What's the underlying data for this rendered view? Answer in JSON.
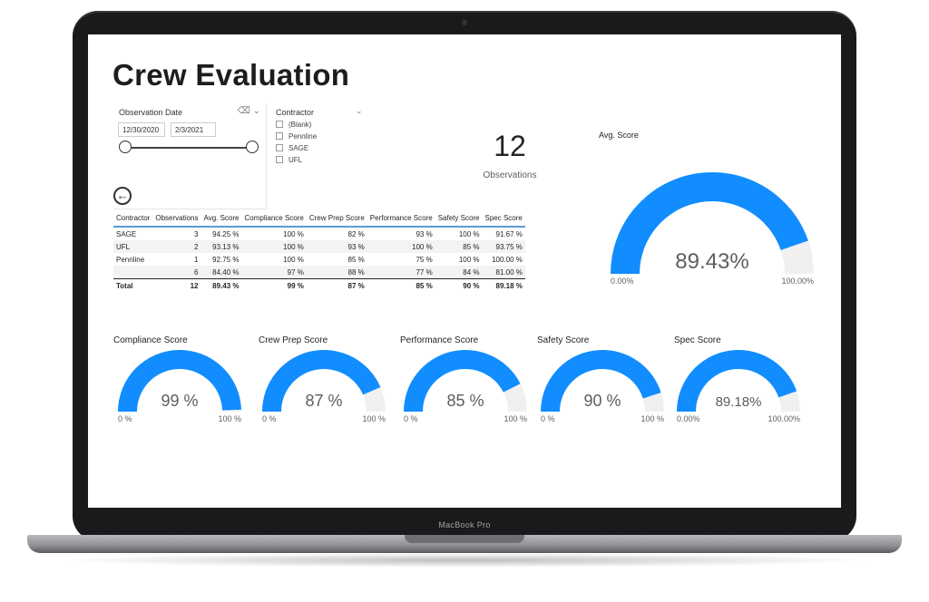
{
  "device": {
    "brand_label": "MacBook Pro"
  },
  "report": {
    "title": "Crew Evaluation",
    "date_slicer": {
      "title": "Observation Date",
      "start": "12/30/2020",
      "end": "2/3/2021"
    },
    "contractor_slicer": {
      "title": "Contractor",
      "options": [
        "(Blank)",
        "Pennline",
        "SAGE",
        "UFL"
      ]
    },
    "kpi": {
      "value": "12",
      "label": "Observations"
    },
    "table": {
      "columns": [
        "Contractor",
        "Observations",
        "Avg. Score",
        "Compliance Score",
        "Crew Prep Score",
        "Performance Score",
        "Safety Score",
        "Spec Score"
      ],
      "rows": [
        [
          "SAGE",
          "3",
          "94.25 %",
          "100 %",
          "82 %",
          "93 %",
          "100 %",
          "91.67 %"
        ],
        [
          "UFL",
          "2",
          "93.13 %",
          "100 %",
          "93 %",
          "100 %",
          "85 %",
          "93.75 %"
        ],
        [
          "Pennline",
          "1",
          "92.75 %",
          "100 %",
          "85 %",
          "75 %",
          "100 %",
          "100.00 %"
        ],
        [
          "",
          "6",
          "84.40 %",
          "97 %",
          "88 %",
          "77 %",
          "84 %",
          "81.00 %"
        ]
      ],
      "total": [
        "Total",
        "12",
        "89.43 %",
        "99 %",
        "87 %",
        "85 %",
        "90 %",
        "89.18 %"
      ]
    },
    "avg_gauge": {
      "title": "Avg. Score",
      "value_label": "89.43%",
      "value": 0.8943,
      "min_label": "0.00%",
      "max_label": "100.00%"
    },
    "gauges": [
      {
        "title": "Compliance Score",
        "value_label": "99 %",
        "value": 0.99,
        "min_label": "0 %",
        "max_label": "100 %"
      },
      {
        "title": "Crew Prep Score",
        "value_label": "87 %",
        "value": 0.87,
        "min_label": "0 %",
        "max_label": "100 %"
      },
      {
        "title": "Performance Score",
        "value_label": "85 %",
        "value": 0.85,
        "min_label": "0 %",
        "max_label": "100 %"
      },
      {
        "title": "Safety Score",
        "value_label": "90 %",
        "value": 0.9,
        "min_label": "0 %",
        "max_label": "100 %"
      },
      {
        "title": "Spec Score",
        "value_label": "89.18%",
        "value": 0.8918,
        "min_label": "0.00%",
        "max_label": "100.00%"
      }
    ],
    "colors": {
      "fill": "#118dff",
      "track": "#f0f0f0"
    }
  }
}
